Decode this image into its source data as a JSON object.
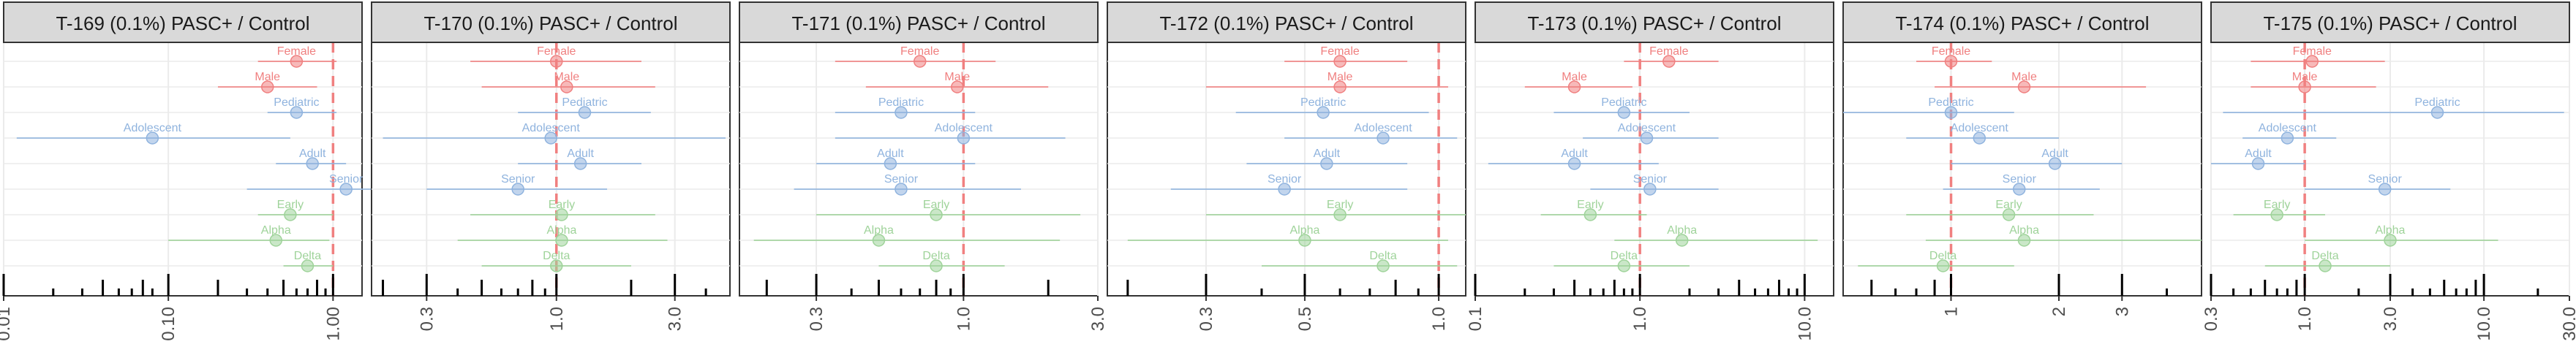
{
  "chart_data": [
    {
      "type": "scatter",
      "title": "T-169 (0.1%) PASC+ / Control",
      "scale": "log",
      "xlim": [
        0.01,
        1.5
      ],
      "ticks": [
        0.01,
        0.1,
        1.0
      ],
      "tick_labels": [
        "0.01",
        "0.10",
        "1.00"
      ],
      "reference_line": 1.0,
      "points": [
        {
          "label": "Female",
          "group": "Sex",
          "estimate": 0.6,
          "low": 0.35,
          "high": 1.05
        },
        {
          "label": "Male",
          "group": "Sex",
          "estimate": 0.4,
          "low": 0.2,
          "high": 0.8
        },
        {
          "label": "Pediatric",
          "group": "Age",
          "estimate": 0.6,
          "low": 0.4,
          "high": 1.05
        },
        {
          "label": "Adolescent",
          "group": "Age",
          "estimate": 0.08,
          "low": 0.012,
          "high": 0.55
        },
        {
          "label": "Adult",
          "group": "Age",
          "estimate": 0.75,
          "low": 0.45,
          "high": 1.2
        },
        {
          "label": "Senior",
          "group": "Age",
          "estimate": 1.2,
          "low": 0.3,
          "high": 2.5
        },
        {
          "label": "Early",
          "group": "Variant",
          "estimate": 0.55,
          "low": 0.35,
          "high": 1.0
        },
        {
          "label": "Alpha",
          "group": "Variant",
          "estimate": 0.45,
          "low": 0.1,
          "high": 0.95
        },
        {
          "label": "Delta",
          "group": "Variant",
          "estimate": 0.7,
          "low": 0.5,
          "high": 1.0
        }
      ],
      "rug": [
        0.01,
        0.02,
        0.03,
        0.04,
        0.05,
        0.06,
        0.07,
        0.08,
        0.1,
        0.2,
        0.3,
        0.4,
        0.5,
        0.6,
        0.7,
        0.8,
        0.9,
        1.0
      ]
    },
    {
      "type": "scatter",
      "title": "T-170 (0.1%) PASC+ / Control",
      "scale": "log",
      "xlim": [
        0.18,
        5.0
      ],
      "ticks": [
        0.3,
        1.0,
        3.0
      ],
      "tick_labels": [
        "0.3",
        "1.0",
        "3.0"
      ],
      "reference_line": 1.0,
      "points": [
        {
          "label": "Female",
          "group": "Sex",
          "estimate": 1.0,
          "low": 0.45,
          "high": 2.2
        },
        {
          "label": "Male",
          "group": "Sex",
          "estimate": 1.1,
          "low": 0.5,
          "high": 2.5
        },
        {
          "label": "Pediatric",
          "group": "Age",
          "estimate": 1.3,
          "low": 0.7,
          "high": 2.4
        },
        {
          "label": "Adolescent",
          "group": "Age",
          "estimate": 0.95,
          "low": 0.2,
          "high": 4.8
        },
        {
          "label": "Adult",
          "group": "Age",
          "estimate": 1.25,
          "low": 0.7,
          "high": 2.2
        },
        {
          "label": "Senior",
          "group": "Age",
          "estimate": 0.7,
          "low": 0.3,
          "high": 1.6
        },
        {
          "label": "Early",
          "group": "Variant",
          "estimate": 1.05,
          "low": 0.45,
          "high": 2.5
        },
        {
          "label": "Alpha",
          "group": "Variant",
          "estimate": 1.05,
          "low": 0.4,
          "high": 2.8
        },
        {
          "label": "Delta",
          "group": "Variant",
          "estimate": 1.0,
          "low": 0.5,
          "high": 2.0
        }
      ],
      "rug": [
        0.2,
        0.3,
        0.4,
        0.5,
        0.6,
        0.7,
        0.8,
        0.9,
        1.0,
        2.0,
        3.0,
        4.0
      ]
    },
    {
      "type": "scatter",
      "title": "T-171 (0.1%) PASC+ / Control",
      "scale": "log",
      "xlim": [
        0.16,
        3.0
      ],
      "ticks": [
        0.3,
        1.0,
        3.0
      ],
      "tick_labels": [
        "0.3",
        "1.0",
        "3.0"
      ],
      "reference_line": 1.0,
      "points": [
        {
          "label": "Female",
          "group": "Sex",
          "estimate": 0.7,
          "low": 0.35,
          "high": 1.3
        },
        {
          "label": "Male",
          "group": "Sex",
          "estimate": 0.95,
          "low": 0.45,
          "high": 2.0
        },
        {
          "label": "Pediatric",
          "group": "Age",
          "estimate": 0.6,
          "low": 0.35,
          "high": 1.1
        },
        {
          "label": "Adolescent",
          "group": "Age",
          "estimate": 1.0,
          "low": 0.35,
          "high": 2.3
        },
        {
          "label": "Adult",
          "group": "Age",
          "estimate": 0.55,
          "low": 0.3,
          "high": 1.1
        },
        {
          "label": "Senior",
          "group": "Age",
          "estimate": 0.6,
          "low": 0.25,
          "high": 1.6
        },
        {
          "label": "Early",
          "group": "Variant",
          "estimate": 0.8,
          "low": 0.3,
          "high": 2.6
        },
        {
          "label": "Alpha",
          "group": "Variant",
          "estimate": 0.5,
          "low": 0.18,
          "high": 2.2
        },
        {
          "label": "Delta",
          "group": "Variant",
          "estimate": 0.8,
          "low": 0.5,
          "high": 1.4
        }
      ],
      "rug": [
        0.2,
        0.3,
        0.4,
        0.5,
        0.6,
        0.7,
        0.8,
        0.9,
        1.0,
        2.0
      ]
    },
    {
      "type": "scatter",
      "title": "T-172 (0.1%) PASC+ / Control",
      "scale": "log",
      "xlim": [
        0.18,
        1.15
      ],
      "ticks": [
        0.3,
        0.5,
        1.0
      ],
      "tick_labels": [
        "0.3",
        "0.5",
        "1.0"
      ],
      "reference_line": 1.0,
      "points": [
        {
          "label": "Female",
          "group": "Sex",
          "estimate": 0.6,
          "low": 0.45,
          "high": 0.85
        },
        {
          "label": "Male",
          "group": "Sex",
          "estimate": 0.6,
          "low": 0.3,
          "high": 1.05
        },
        {
          "label": "Pediatric",
          "group": "Age",
          "estimate": 0.55,
          "low": 0.35,
          "high": 0.95
        },
        {
          "label": "Adolescent",
          "group": "Age",
          "estimate": 0.75,
          "low": 0.45,
          "high": 1.1
        },
        {
          "label": "Adult",
          "group": "Age",
          "estimate": 0.56,
          "low": 0.37,
          "high": 0.85
        },
        {
          "label": "Senior",
          "group": "Age",
          "estimate": 0.45,
          "low": 0.25,
          "high": 0.85
        },
        {
          "label": "Early",
          "group": "Variant",
          "estimate": 0.6,
          "low": 0.3,
          "high": 1.15
        },
        {
          "label": "Alpha",
          "group": "Variant",
          "estimate": 0.5,
          "low": 0.2,
          "high": 1.05
        },
        {
          "label": "Delta",
          "group": "Variant",
          "estimate": 0.75,
          "low": 0.4,
          "high": 1.1
        }
      ],
      "rug": [
        0.2,
        0.3,
        0.4,
        0.5,
        0.6,
        0.7,
        0.8,
        0.9,
        1.0
      ]
    },
    {
      "type": "scatter",
      "title": "T-173 (0.1%) PASC+ / Control",
      "scale": "log",
      "xlim": [
        0.1,
        15.0
      ],
      "ticks": [
        0.1,
        1.0,
        10.0
      ],
      "tick_labels": [
        "0.1",
        "1.0",
        "10.0"
      ],
      "reference_line": 1.0,
      "points": [
        {
          "label": "Female",
          "group": "Sex",
          "estimate": 1.5,
          "low": 0.8,
          "high": 3.0
        },
        {
          "label": "Male",
          "group": "Sex",
          "estimate": 0.4,
          "low": 0.2,
          "high": 0.9
        },
        {
          "label": "Pediatric",
          "group": "Age",
          "estimate": 0.8,
          "low": 0.3,
          "high": 2.0
        },
        {
          "label": "Adolescent",
          "group": "Age",
          "estimate": 1.1,
          "low": 0.45,
          "high": 3.0
        },
        {
          "label": "Adult",
          "group": "Age",
          "estimate": 0.4,
          "low": 0.12,
          "high": 1.3
        },
        {
          "label": "Senior",
          "group": "Age",
          "estimate": 1.15,
          "low": 0.5,
          "high": 3.0
        },
        {
          "label": "Early",
          "group": "Variant",
          "estimate": 0.5,
          "low": 0.25,
          "high": 1.1
        },
        {
          "label": "Alpha",
          "group": "Variant",
          "estimate": 1.8,
          "low": 0.7,
          "high": 12.0
        },
        {
          "label": "Delta",
          "group": "Variant",
          "estimate": 0.8,
          "low": 0.3,
          "high": 2.0
        }
      ],
      "rug": [
        0.1,
        0.2,
        0.3,
        0.4,
        0.5,
        0.6,
        0.7,
        0.8,
        0.9,
        1.0,
        2.0,
        3.0,
        4.0,
        5.0,
        6.0,
        7.0,
        8.0,
        9.0,
        10.0
      ]
    },
    {
      "type": "scatter",
      "title": "T-174 (0.1%) PASC+ / Control",
      "scale": "log",
      "xlim": [
        0.5,
        5.0
      ],
      "ticks": [
        1,
        2,
        3
      ],
      "tick_labels": [
        "1",
        "2",
        "3"
      ],
      "reference_line": 1.0,
      "points": [
        {
          "label": "Female",
          "group": "Sex",
          "estimate": 1.0,
          "low": 0.8,
          "high": 1.3
        },
        {
          "label": "Male",
          "group": "Sex",
          "estimate": 1.6,
          "low": 0.9,
          "high": 3.5
        },
        {
          "label": "Pediatric",
          "group": "Age",
          "estimate": 1.0,
          "low": 0.5,
          "high": 1.5
        },
        {
          "label": "Adolescent",
          "group": "Age",
          "estimate": 1.2,
          "low": 0.75,
          "high": 2.0
        },
        {
          "label": "Adult",
          "group": "Age",
          "estimate": 1.95,
          "low": 1.0,
          "high": 3.0
        },
        {
          "label": "Senior",
          "group": "Age",
          "estimate": 1.55,
          "low": 0.95,
          "high": 2.6
        },
        {
          "label": "Early",
          "group": "Variant",
          "estimate": 1.45,
          "low": 0.75,
          "high": 2.5
        },
        {
          "label": "Alpha",
          "group": "Variant",
          "estimate": 1.6,
          "low": 0.85,
          "high": 5.0
        },
        {
          "label": "Delta",
          "group": "Variant",
          "estimate": 0.95,
          "low": 0.55,
          "high": 1.5
        }
      ],
      "rug": [
        0.6,
        0.7,
        0.8,
        0.9,
        1,
        2,
        3,
        4
      ]
    },
    {
      "type": "scatter",
      "title": "T-175 (0.1%) PASC+ / Control",
      "scale": "log",
      "xlim": [
        0.3,
        30.0
      ],
      "ticks": [
        0.3,
        1.0,
        3.0,
        10.0,
        30.0
      ],
      "tick_labels": [
        "0.3",
        "1.0",
        "3.0",
        "10.0",
        "30.0"
      ],
      "reference_line": 1.0,
      "points": [
        {
          "label": "Female",
          "group": "Sex",
          "estimate": 1.1,
          "low": 0.5,
          "high": 2.8
        },
        {
          "label": "Male",
          "group": "Sex",
          "estimate": 1.0,
          "low": 0.5,
          "high": 2.5
        },
        {
          "label": "Pediatric",
          "group": "Age",
          "estimate": 5.5,
          "low": 0.35,
          "high": 28.0
        },
        {
          "label": "Adolescent",
          "group": "Age",
          "estimate": 0.8,
          "low": 0.45,
          "high": 1.5
        },
        {
          "label": "Adult",
          "group": "Age",
          "estimate": 0.55,
          "low": 0.3,
          "high": 1.0
        },
        {
          "label": "Senior",
          "group": "Age",
          "estimate": 2.8,
          "low": 1.0,
          "high": 6.5
        },
        {
          "label": "Early",
          "group": "Variant",
          "estimate": 0.7,
          "low": 0.4,
          "high": 1.3
        },
        {
          "label": "Alpha",
          "group": "Variant",
          "estimate": 3.0,
          "low": 1.0,
          "high": 12.0
        },
        {
          "label": "Delta",
          "group": "Variant",
          "estimate": 1.3,
          "low": 0.6,
          "high": 3.0
        }
      ],
      "rug": [
        0.3,
        0.4,
        0.5,
        0.6,
        0.7,
        0.8,
        0.9,
        1.0,
        2.0,
        3.0,
        4.0,
        5.0,
        6.0,
        7.0,
        8.0,
        9.0,
        10.0,
        20.0
      ]
    }
  ],
  "colors": {
    "Sex": "#f08080",
    "Age": "#8fb3de",
    "Variant": "#9fd39a",
    "reference_line": "#f08080",
    "strip_fill": "#d9d9d9",
    "grid": "#ebebeb",
    "rug": "#000000"
  }
}
